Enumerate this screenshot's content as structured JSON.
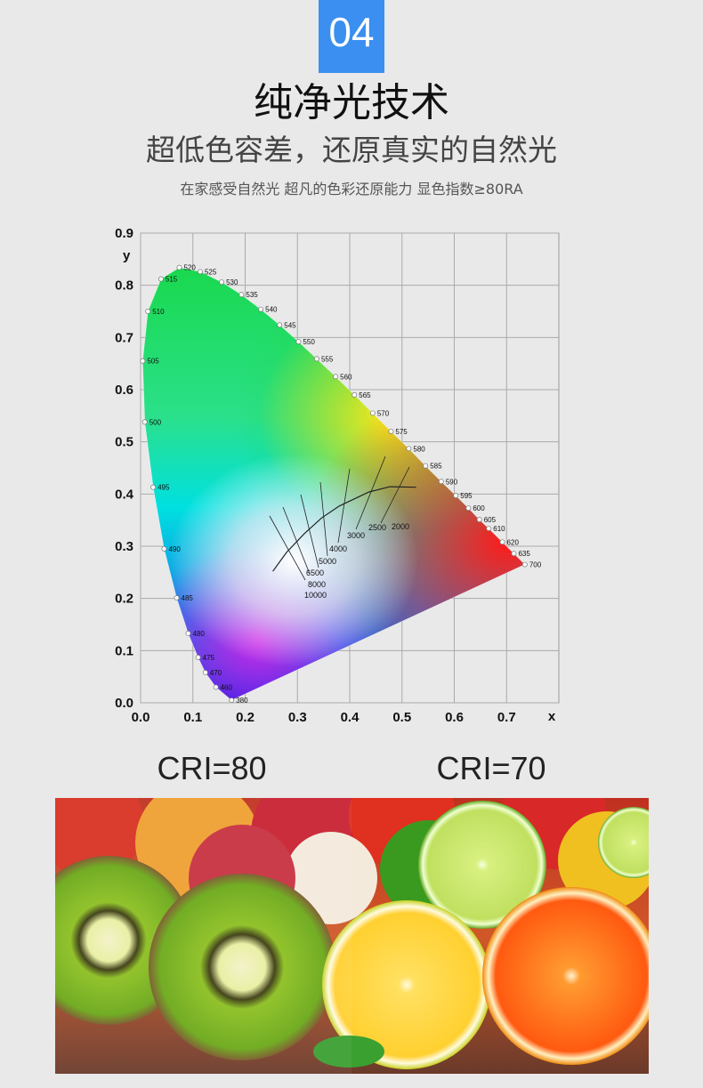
{
  "badge": "04",
  "title": "纯净光技术",
  "subtitle": "超低色容差，还原真实的自然光",
  "description": "在家感受自然光 超凡的色彩还原能力 显色指数≥80RA",
  "chart_data": {
    "type": "scatter",
    "xlabel": "x",
    "ylabel": "y",
    "xlim": [
      0,
      0.8
    ],
    "ylim": [
      0,
      0.9
    ],
    "xticks": [
      {
        "value": 0,
        "label": "0.0"
      },
      0.1,
      0.2,
      0.3,
      0.4,
      0.5,
      0.6,
      0.7
    ],
    "yticks": [
      {
        "value": 0,
        "label": "0.0"
      },
      0.1,
      0.2,
      0.3,
      0.4,
      0.5,
      0.6,
      0.7,
      0.8,
      0.9
    ],
    "grid": true,
    "series": [
      {
        "x": [
          0.174,
          0.144,
          0.124,
          0.11,
          0.091,
          0.069,
          0.045,
          0.024,
          0.008,
          0.004,
          0.014,
          0.039,
          0.074,
          0.114,
          0.155,
          0.193,
          0.23,
          0.266,
          0.302,
          0.337,
          0.373,
          0.409,
          0.444,
          0.479,
          0.513,
          0.545,
          0.575,
          0.603,
          0.627,
          0.648,
          0.666,
          0.692,
          0.714,
          0.735
        ],
        "values": [
          0.005,
          0.03,
          0.058,
          0.087,
          0.133,
          0.201,
          0.295,
          0.413,
          0.538,
          0.655,
          0.75,
          0.812,
          0.834,
          0.826,
          0.806,
          0.782,
          0.754,
          0.724,
          0.692,
          0.659,
          0.625,
          0.59,
          0.555,
          0.52,
          0.487,
          0.454,
          0.424,
          0.397,
          0.373,
          0.351,
          0.334,
          0.308,
          0.286,
          0.265
        ],
        "point_labels": [
          380,
          460,
          470,
          475,
          480,
          485,
          490,
          495,
          500,
          505,
          510,
          515,
          520,
          525,
          530,
          535,
          540,
          545,
          550,
          555,
          560,
          565,
          570,
          575,
          580,
          585,
          590,
          595,
          600,
          605,
          610,
          620,
          635,
          700
        ],
        "color": "#ffffff"
      },
      {
        "x": [
          0.253,
          0.279,
          0.313,
          0.346,
          0.38,
          0.437,
          0.477,
          0.527
        ],
        "values": [
          0.252,
          0.288,
          0.324,
          0.354,
          0.377,
          0.404,
          0.414,
          0.413
        ],
        "color": "#222222"
      }
    ],
    "cct_labels": [
      3000,
      2500,
      2000,
      4000,
      5000,
      6500,
      8000,
      10000
    ]
  },
  "comparison": {
    "left": "CRI=80",
    "right": "CRI=70"
  }
}
